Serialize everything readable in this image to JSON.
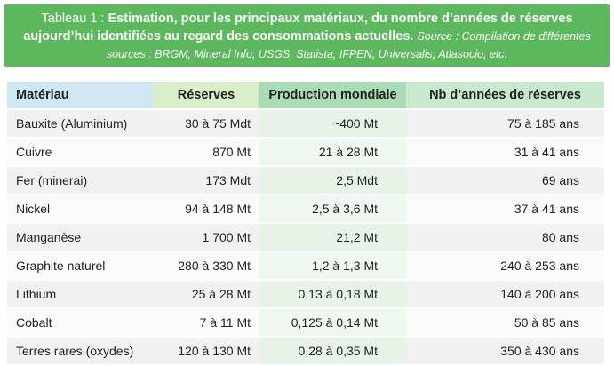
{
  "header": {
    "label": "Tableau 1 :",
    "title": "Estimation, pour les principaux matériaux, du nombre d’années de réserves aujourd’hui identifiées au regard des consommations actuelles.",
    "source": "Source : Compilation de différentes sources : BRGM, Mineral Info, USGS, Statista, IFPEN, Universalis, Atlasocio, etc."
  },
  "table": {
    "columns": [
      "Matériau",
      "Réserves",
      "Production mondiale",
      "Nb d’années de réserves"
    ],
    "rows": [
      [
        "Bauxite (Aluminium)",
        "30 à 75 Mdt",
        "~400 Mt",
        "75 à 185 ans"
      ],
      [
        "Cuivre",
        "870 Mt",
        "21 à 28 Mt",
        "31 à 41 ans"
      ],
      [
        "Fer (minerai)",
        "173 Mdt",
        "2,5 Mdt",
        "69 ans"
      ],
      [
        "Nickel",
        "94 à 148 Mt",
        "2,5 à 3,6 Mt",
        "37 à 41 ans"
      ],
      [
        "Manganèse",
        "1 700 Mt",
        "21,2 Mt",
        "80 ans"
      ],
      [
        "Graphite naturel",
        "280 à 330 Mt",
        "1,2 à 1,3 Mt",
        "240 à 253 ans"
      ],
      [
        "Lithium",
        "25 à 28 Mt",
        "0,13 à 0,18 Mt",
        "140 à 200 ans"
      ],
      [
        "Cobalt",
        "7 à 11 Mt",
        "0,125 à 0,14 Mt",
        "50 à 85 ans"
      ],
      [
        "Terres rares (oxydes)",
        "120 à 130 Mt",
        "0,28 à 0,35 Mt",
        "350 à 430 ans"
      ]
    ]
  }
}
